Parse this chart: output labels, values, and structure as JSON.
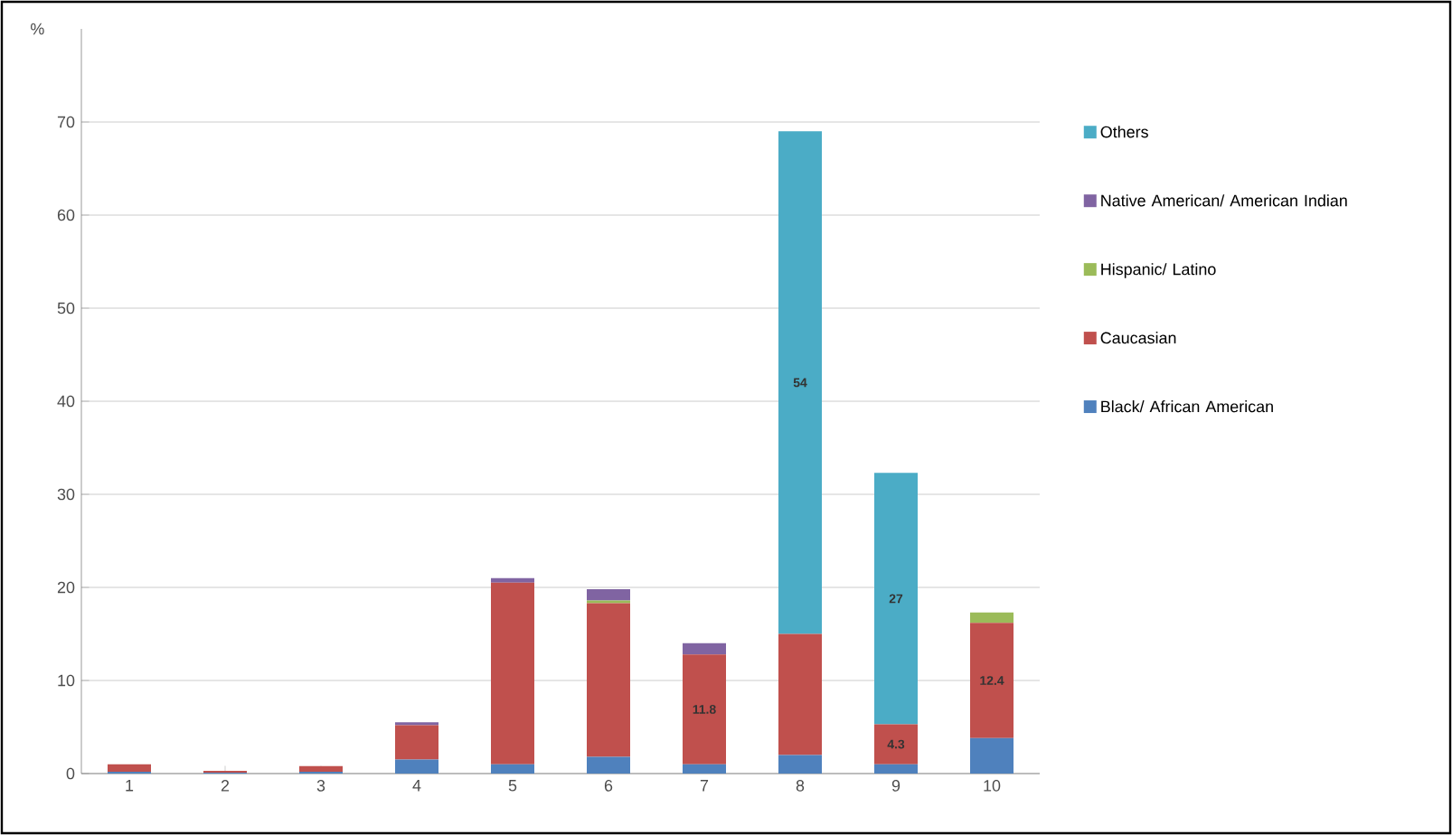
{
  "chart_data": {
    "type": "bar",
    "stacked": true,
    "ylabel": "%",
    "categories": [
      "1",
      "2",
      "3",
      "4",
      "5",
      "6",
      "7",
      "8",
      "9",
      "10"
    ],
    "ylim": [
      0,
      80
    ],
    "yticks": [
      0,
      10,
      20,
      30,
      40,
      50,
      60,
      70
    ],
    "grid": "y",
    "legend": "right",
    "series": [
      {
        "name": "Black/ African American",
        "color": "#4f81bd",
        "values": [
          0.2,
          0.1,
          0.2,
          1.5,
          1,
          1.8,
          1,
          2,
          1,
          3.8
        ]
      },
      {
        "name": "Caucasian",
        "color": "#c0504d",
        "values": [
          0.8,
          0.2,
          0.6,
          3.7,
          19.5,
          16.5,
          11.8,
          13,
          4.3,
          12.4
        ],
        "value_labels": [
          null,
          null,
          null,
          null,
          null,
          null,
          "11.8",
          null,
          "4.3",
          "12.4"
        ]
      },
      {
        "name": "Hispanic/ Latino",
        "color": "#9bbb59",
        "values": [
          0,
          0,
          0,
          0,
          0,
          0.3,
          0,
          0,
          0,
          1.1
        ]
      },
      {
        "name": "Native American/ American Indian",
        "color": "#8064a2",
        "values": [
          0,
          0,
          0,
          0.3,
          0.5,
          1.2,
          1.2,
          0,
          0,
          0
        ]
      },
      {
        "name": "Others",
        "color": "#4bacc6",
        "values": [
          0,
          0,
          0,
          0,
          0,
          0,
          0,
          54,
          27,
          0
        ],
        "value_labels": [
          null,
          null,
          null,
          null,
          null,
          null,
          null,
          "54",
          "27",
          null
        ]
      }
    ]
  }
}
